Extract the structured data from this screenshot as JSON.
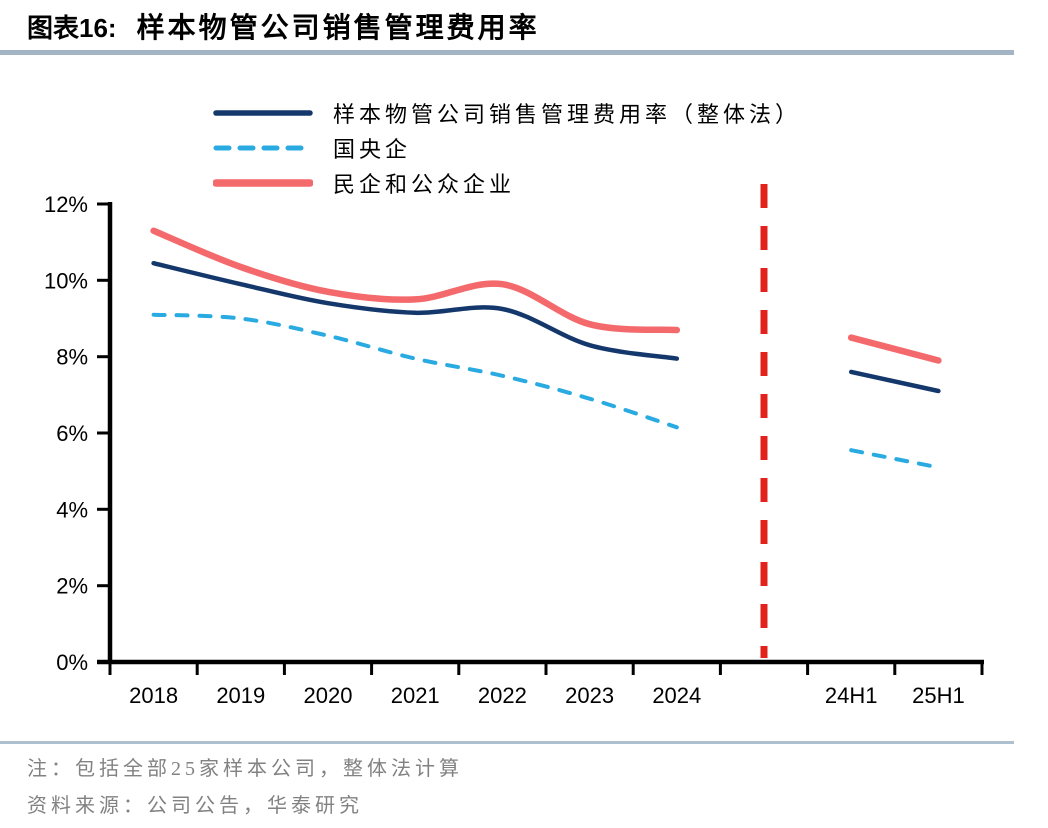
{
  "header": {
    "figure_label": "图表16:",
    "title": "样本物管公司销售管理费用率",
    "rule_color": "#a3b5c5"
  },
  "legend": {
    "items": [
      "样本物管公司销售管理费用率（整体法）",
      "国央企",
      "民企和公众企业"
    ]
  },
  "chart_data": {
    "type": "line",
    "title": "样本物管公司销售管理费用率",
    "unit": "%",
    "categories": [
      "2018",
      "2019",
      "2020",
      "2021",
      "2022",
      "2023",
      "2024",
      "",
      "24H1",
      "25H1"
    ],
    "series": [
      {
        "name": "样本物管公司销售管理费用率（整体法）",
        "color": "#15386c",
        "dashed": false,
        "stroke_width": 4.5,
        "values": [
          10.45,
          9.9,
          9.4,
          9.15,
          9.25,
          8.3,
          7.95,
          null,
          7.6,
          7.1
        ]
      },
      {
        "name": "国央企",
        "color": "#29abe2",
        "dashed": true,
        "stroke_width": 4,
        "values": [
          9.1,
          9.0,
          8.55,
          7.95,
          7.5,
          6.9,
          6.15,
          null,
          5.55,
          5.1
        ]
      },
      {
        "name": "民企和公众企业",
        "color": "#f4696b",
        "dashed": false,
        "stroke_width": 6.5,
        "values": [
          11.3,
          10.35,
          9.7,
          9.5,
          9.9,
          8.85,
          8.7,
          null,
          8.5,
          7.9
        ]
      }
    ],
    "ylim": [
      0,
      12
    ],
    "y_tick_labels": [
      "0%",
      "2%",
      "4%",
      "6%",
      "8%",
      "10%",
      "12%"
    ],
    "x_tick_labels": [
      "2018",
      "2019",
      "2020",
      "2021",
      "2022",
      "2023",
      "2024",
      "24H1",
      "25H1"
    ],
    "divider": {
      "after_category": "2024",
      "color": "#e2231d",
      "style": "dashed"
    },
    "grid": false,
    "legend_position": "top-left",
    "axis_color": "#000000",
    "smooth": true
  },
  "footer": {
    "note": "注：包括全部25家样本公司，整体法计算",
    "source": "资料来源：公司公告，华泰研究",
    "rule_color": "#aebfce"
  }
}
